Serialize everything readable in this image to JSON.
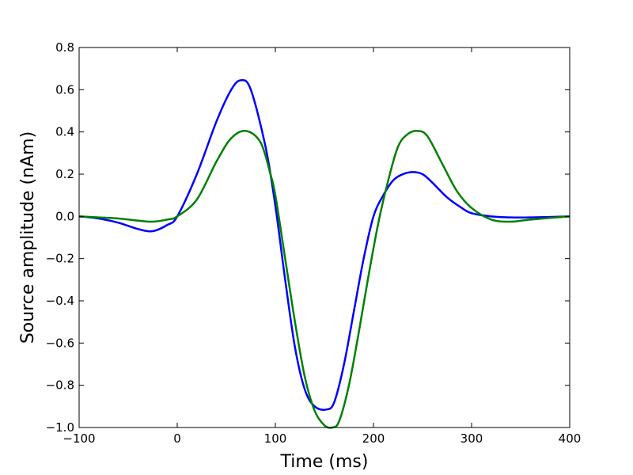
{
  "chart_data": {
    "type": "line",
    "title": "",
    "xlabel": "Time (ms)",
    "ylabel": "Source amplitude (nAm)",
    "xlim": [
      -100,
      400
    ],
    "ylim": [
      -1.0,
      0.8
    ],
    "xticks": [
      -100,
      0,
      100,
      200,
      300,
      400
    ],
    "xtick_labels": [
      "−100",
      "0",
      "100",
      "200",
      "300",
      "400"
    ],
    "yticks": [
      -1.0,
      -0.8,
      -0.6,
      -0.4,
      -0.2,
      0.0,
      0.2,
      0.4,
      0.6,
      0.8
    ],
    "ytick_labels": [
      "−1.0",
      "−0.8",
      "−0.6",
      "−0.4",
      "−0.2",
      "0.0",
      "0.2",
      "0.4",
      "0.6",
      "0.8"
    ],
    "grid": false,
    "series": [
      {
        "color": "#0000ff",
        "x": [
          -100,
          -80,
          -60,
          -40,
          -25,
          -10,
          0,
          20,
          40,
          55,
          65,
          75,
          90,
          100,
          110,
          120,
          130,
          140,
          152,
          160,
          170,
          180,
          190,
          200,
          210,
          220,
          230,
          240,
          250,
          260,
          275,
          290,
          300,
          320,
          340,
          360,
          400
        ],
        "y": [
          0.0,
          -0.01,
          -0.03,
          -0.06,
          -0.07,
          -0.04,
          0.0,
          0.2,
          0.45,
          0.6,
          0.645,
          0.6,
          0.33,
          0.05,
          -0.3,
          -0.62,
          -0.82,
          -0.9,
          -0.915,
          -0.88,
          -0.7,
          -0.45,
          -0.2,
          0.0,
          0.1,
          0.17,
          0.2,
          0.21,
          0.2,
          0.16,
          0.09,
          0.04,
          0.015,
          0.0,
          -0.005,
          -0.005,
          0.0
        ]
      },
      {
        "color": "#008000",
        "x": [
          -100,
          -80,
          -60,
          -40,
          -25,
          -10,
          0,
          20,
          40,
          55,
          70,
          85,
          95,
          100,
          110,
          120,
          130,
          140,
          150,
          158,
          165,
          175,
          185,
          195,
          205,
          215,
          225,
          235,
          245,
          255,
          270,
          285,
          300,
          320,
          340,
          360,
          400
        ],
        "y": [
          0.0,
          -0.005,
          -0.01,
          -0.02,
          -0.025,
          -0.015,
          0.0,
          0.08,
          0.26,
          0.37,
          0.405,
          0.35,
          0.2,
          0.1,
          -0.2,
          -0.5,
          -0.76,
          -0.92,
          -0.99,
          -1.0,
          -0.97,
          -0.8,
          -0.55,
          -0.28,
          -0.03,
          0.17,
          0.33,
          0.39,
          0.405,
          0.38,
          0.25,
          0.12,
          0.04,
          -0.015,
          -0.025,
          -0.015,
          0.0
        ]
      }
    ]
  }
}
